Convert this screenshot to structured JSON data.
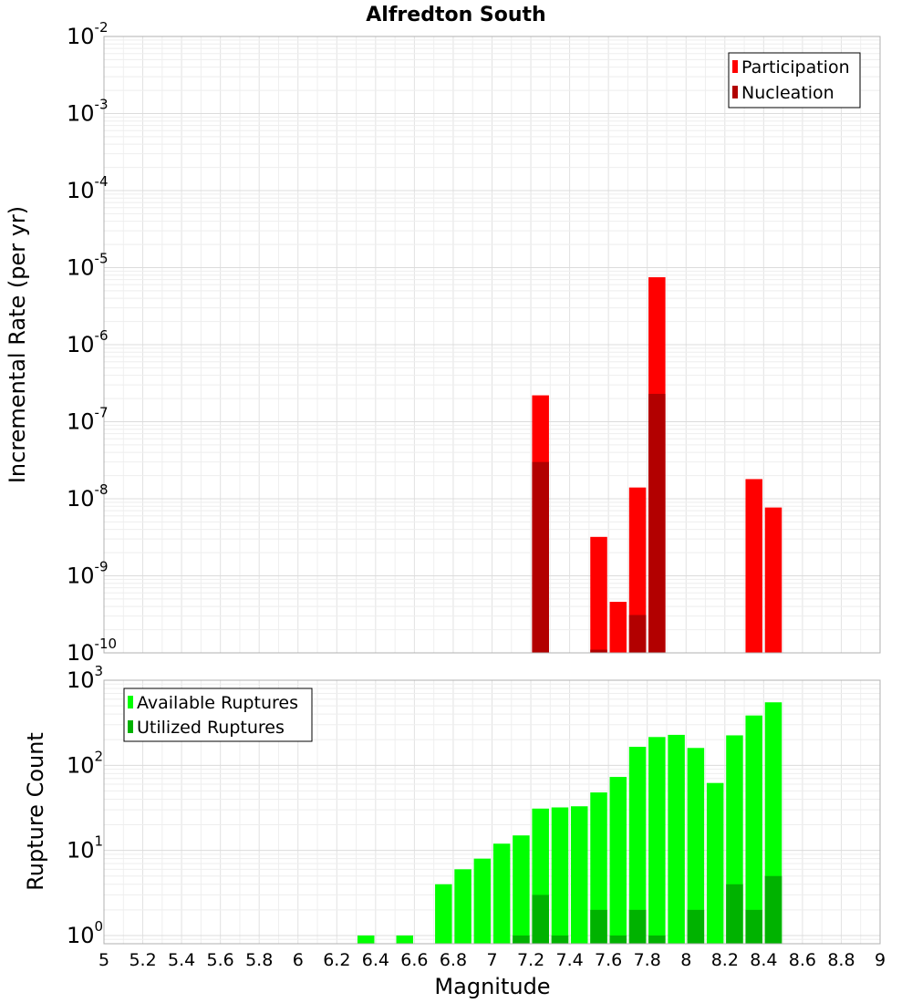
{
  "chart_data": [
    {
      "type": "bar",
      "title": "Alfredton South",
      "xlabel": "",
      "ylabel": "Incremental Rate (per yr)",
      "yscale": "log",
      "ylim": [
        1e-10,
        0.01
      ],
      "xlim": [
        5,
        9
      ],
      "grid": true,
      "legend_position": "top-right",
      "y_ticks": [
        {
          "base": "10",
          "exp": "-10",
          "value": 1e-10
        },
        {
          "base": "10",
          "exp": "-9",
          "value": 1e-09
        },
        {
          "base": "10",
          "exp": "-8",
          "value": 1e-08
        },
        {
          "base": "10",
          "exp": "-7",
          "value": 1e-07
        },
        {
          "base": "10",
          "exp": "-6",
          "value": 1e-06
        },
        {
          "base": "10",
          "exp": "-5",
          "value": 1e-05
        },
        {
          "base": "10",
          "exp": "-4",
          "value": 0.0001
        },
        {
          "base": "10",
          "exp": "-3",
          "value": 0.001
        },
        {
          "base": "10",
          "exp": "-2",
          "value": 0.01
        }
      ],
      "series": [
        {
          "name": "Participation",
          "color": "#ff0000",
          "points": [
            {
              "x": 7.25,
              "y": 2.2e-07
            },
            {
              "x": 7.55,
              "y": 3.2e-09
            },
            {
              "x": 7.65,
              "y": 4.6e-10
            },
            {
              "x": 7.75,
              "y": 1.4e-08
            },
            {
              "x": 7.85,
              "y": 7.5e-06
            },
            {
              "x": 8.35,
              "y": 1.8e-08
            },
            {
              "x": 8.45,
              "y": 7.7e-09
            }
          ]
        },
        {
          "name": "Nucleation",
          "color": "#b20000",
          "points": [
            {
              "x": 7.25,
              "y": 3e-08
            },
            {
              "x": 7.55,
              "y": 1.1e-10
            },
            {
              "x": 7.75,
              "y": 3.1e-10
            },
            {
              "x": 7.85,
              "y": 2.3e-07
            }
          ]
        }
      ]
    },
    {
      "type": "bar",
      "title": "",
      "xlabel": "Magnitude",
      "ylabel": "Rupture Count",
      "yscale": "log",
      "ylim": [
        0.8,
        1000
      ],
      "xlim": [
        5,
        9
      ],
      "grid": true,
      "legend_position": "top-left",
      "x_ticks": [
        "5",
        "5.2",
        "5.4",
        "5.6",
        "5.8",
        "6",
        "6.2",
        "6.4",
        "6.6",
        "6.8",
        "7",
        "7.2",
        "7.4",
        "7.6",
        "7.8",
        "8",
        "8.2",
        "8.4",
        "8.6",
        "8.8",
        "9"
      ],
      "y_ticks": [
        {
          "base": "10",
          "exp": "0",
          "value": 1
        },
        {
          "base": "10",
          "exp": "1",
          "value": 10
        },
        {
          "base": "10",
          "exp": "2",
          "value": 100
        },
        {
          "base": "10",
          "exp": "3",
          "value": 1000
        }
      ],
      "series": [
        {
          "name": "Available Ruptures",
          "color": "#00ff00",
          "points": [
            {
              "x": 6.35,
              "y": 1
            },
            {
              "x": 6.55,
              "y": 1
            },
            {
              "x": 6.75,
              "y": 4
            },
            {
              "x": 6.85,
              "y": 6
            },
            {
              "x": 6.95,
              "y": 8
            },
            {
              "x": 7.05,
              "y": 12
            },
            {
              "x": 7.15,
              "y": 15
            },
            {
              "x": 7.25,
              "y": 31
            },
            {
              "x": 7.35,
              "y": 32
            },
            {
              "x": 7.45,
              "y": 33
            },
            {
              "x": 7.55,
              "y": 48
            },
            {
              "x": 7.65,
              "y": 73
            },
            {
              "x": 7.75,
              "y": 165
            },
            {
              "x": 7.85,
              "y": 215
            },
            {
              "x": 7.95,
              "y": 228
            },
            {
              "x": 8.05,
              "y": 160
            },
            {
              "x": 8.15,
              "y": 62
            },
            {
              "x": 8.25,
              "y": 225
            },
            {
              "x": 8.35,
              "y": 385
            },
            {
              "x": 8.45,
              "y": 550
            }
          ]
        },
        {
          "name": "Utilized Ruptures",
          "color": "#00b200",
          "points": [
            {
              "x": 7.15,
              "y": 1
            },
            {
              "x": 7.25,
              "y": 3
            },
            {
              "x": 7.35,
              "y": 1
            },
            {
              "x": 7.55,
              "y": 2
            },
            {
              "x": 7.65,
              "y": 1
            },
            {
              "x": 7.75,
              "y": 2
            },
            {
              "x": 7.85,
              "y": 1
            },
            {
              "x": 8.05,
              "y": 2
            },
            {
              "x": 8.25,
              "y": 4
            },
            {
              "x": 8.35,
              "y": 2
            },
            {
              "x": 8.45,
              "y": 5
            }
          ]
        }
      ]
    }
  ]
}
